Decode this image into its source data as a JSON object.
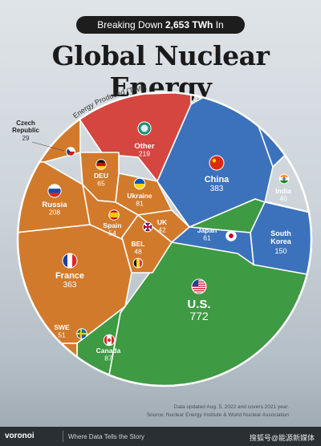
{
  "header": {
    "pill_prefix": "Breaking Down",
    "pill_total": "2,653 TWh",
    "pill_suffix": "In",
    "title": "Global Nuclear Energy"
  },
  "chart_data": {
    "type": "voronoi treemap",
    "subtitle": "Energy Produced (TWh)",
    "cells": [
      {
        "name": "U.S.",
        "value": 772,
        "color": "#3e9a43",
        "flag": "us"
      },
      {
        "name": "China",
        "value": 383,
        "color": "#3c72bb",
        "flag": "cn"
      },
      {
        "name": "France",
        "value": 363,
        "color": "#d27a2b",
        "flag": "fr"
      },
      {
        "name": "Other",
        "value": 219,
        "color": "#d4463f",
        "flag": "other"
      },
      {
        "name": "Russia",
        "value": 208,
        "color": "#d27a2b",
        "flag": "ru"
      },
      {
        "name": "South Korea",
        "value": 150,
        "color": "#3c72bb",
        "flag": "kr"
      },
      {
        "name": "Canada",
        "value": 87,
        "color": "#3e9a43",
        "flag": "ca"
      },
      {
        "name": "Ukraine",
        "value": 81,
        "color": "#d27a2b",
        "flag": "ua"
      },
      {
        "name": "DEU",
        "value": 65,
        "color": "#d27a2b",
        "flag": "de"
      },
      {
        "name": "Japan",
        "value": 61,
        "color": "#3c72bb",
        "flag": "jp"
      },
      {
        "name": "Spain",
        "value": 54,
        "color": "#d27a2b",
        "flag": "es"
      },
      {
        "name": "SWE",
        "value": 51,
        "color": "#d27a2b",
        "flag": "se"
      },
      {
        "name": "BEL",
        "value": 48,
        "color": "#d27a2b",
        "flag": "be"
      },
      {
        "name": "UK",
        "value": 42,
        "color": "#d27a2b",
        "flag": "uk"
      },
      {
        "name": "India",
        "value": 40,
        "color": "#3c72bb",
        "flag": "in"
      },
      {
        "name": "Czech Republic",
        "value": 29,
        "color": "#d27a2b",
        "flag": "cz"
      }
    ]
  },
  "footnote": {
    "line1": "Data updated Aug. 5, 2022 and covers 2021 year.",
    "line2": "Source: Nuclear Energy Institute & World Nuclear Association"
  },
  "footer": {
    "brand": "voronoi",
    "tagline": "Where Data Tells the Story",
    "watermark": "搜狐号@能源新媒体"
  },
  "colors": {
    "green": "#3e9a43",
    "blue": "#3c72bb",
    "orange": "#d27a2b",
    "red": "#d4463f"
  }
}
